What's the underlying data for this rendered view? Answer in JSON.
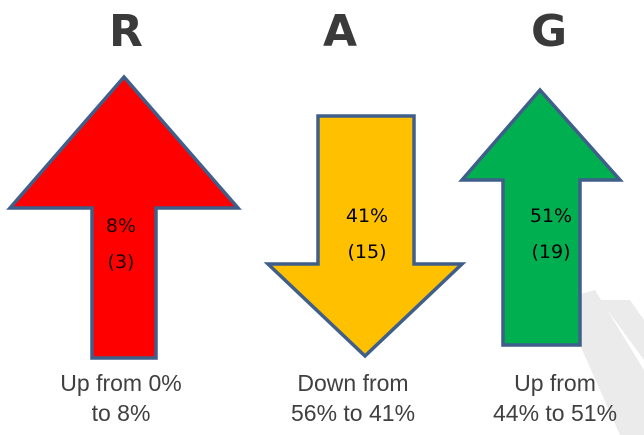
{
  "columns": [
    {
      "letter": "R",
      "direction": "up",
      "color": "#ff0000",
      "percent": "8%",
      "count": "(3)",
      "caption_line1": "Up from 0%",
      "caption_line2": "to 8%"
    },
    {
      "letter": "A",
      "direction": "down",
      "color": "#ffc000",
      "percent": "41%",
      "count": "(15)",
      "caption_line1": "Down from",
      "caption_line2": "56% to 41%"
    },
    {
      "letter": "G",
      "direction": "up",
      "color": "#00b050",
      "percent": "51%",
      "count": "(19)",
      "caption_line1": "Up from",
      "caption_line2": "44% to 51%"
    }
  ],
  "outline_color": "#3f5f8a"
}
